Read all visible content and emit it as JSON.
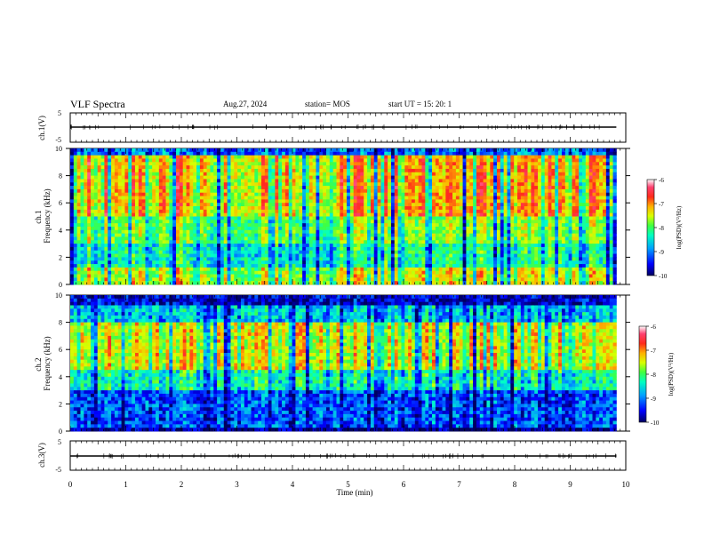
{
  "header": {
    "title": "VLF Spectra",
    "date": "Aug.27, 2024",
    "station": "station= MOS",
    "start": "start  UT  =   15: 20: 1"
  },
  "colors": {
    "colormap": [
      "#00007a",
      "#0000ff",
      "#0090ff",
      "#00ffd0",
      "#40ff40",
      "#d8ff00",
      "#ffb000",
      "#ff2a1a",
      "#ff3060",
      "#ffffff"
    ]
  },
  "chart_data": [
    {
      "type": "line",
      "panel": "ch1-waveform",
      "ylabel": "ch.1(V)",
      "ylim": [
        -5,
        5
      ],
      "yticks": [
        "5",
        "-5"
      ],
      "xlim": [
        0,
        10
      ],
      "note_value": 0
    },
    {
      "type": "heatmap",
      "panel": "ch1-spectrogram",
      "ylabel": "ch.1 Frequency (kHz)",
      "ylim": [
        0,
        10
      ],
      "yticks": [
        "0",
        "2",
        "4",
        "6",
        "8",
        "10"
      ],
      "xlim": [
        0,
        10
      ],
      "colorbar": {
        "label": "log(PSD)(V²/Hz)",
        "range": [
          -10,
          -6
        ],
        "ticks": [
          "-6",
          "-7",
          "-8",
          "-9",
          "-10"
        ]
      }
    },
    {
      "type": "heatmap",
      "panel": "ch2-spectrogram",
      "ylabel": "ch.2 Frequency (kHz)",
      "ylim": [
        0,
        10
      ],
      "yticks": [
        "0",
        "2",
        "4",
        "6",
        "8",
        "10"
      ],
      "xlim": [
        0,
        10
      ],
      "colorbar": {
        "label": "log(PSD)(V²/Hz)",
        "range": [
          -10,
          -6
        ],
        "ticks": [
          "-6",
          "-7",
          "-8",
          "-9",
          "-10"
        ]
      }
    },
    {
      "type": "line",
      "panel": "ch3-waveform",
      "ylabel": "ch.3(V)",
      "ylim": [
        -5,
        5
      ],
      "yticks": [
        "5",
        "-5"
      ],
      "xlim": [
        0,
        10
      ]
    }
  ],
  "xaxis": {
    "label": "Time  (min)",
    "ticks": [
      "0",
      "1",
      "2",
      "3",
      "4",
      "5",
      "6",
      "7",
      "8",
      "9",
      "10"
    ]
  },
  "data_end_min": 9.83
}
